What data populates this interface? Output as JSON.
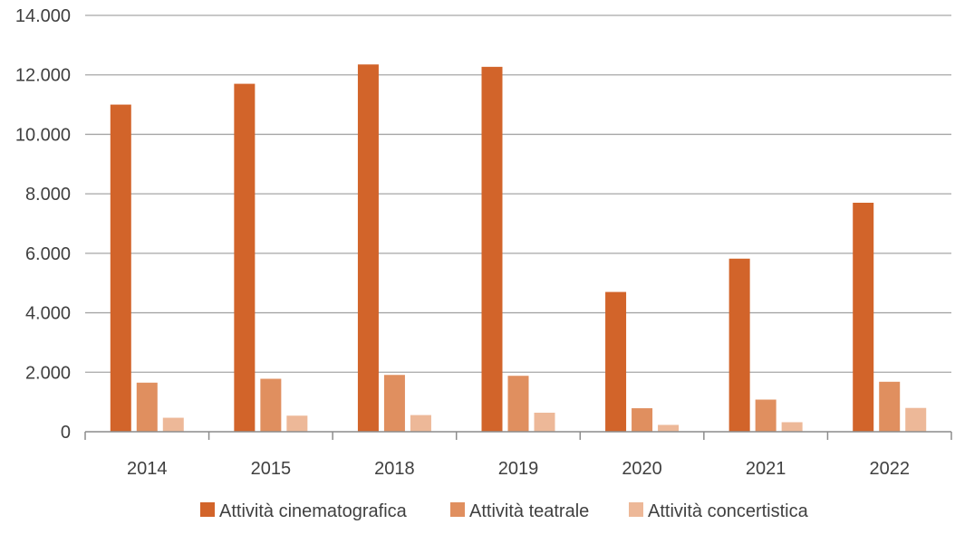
{
  "chart_data": {
    "type": "bar",
    "title": "",
    "xlabel": "",
    "ylabel": "",
    "categories": [
      "2014",
      "2015",
      "2018",
      "2019",
      "2020",
      "2021",
      "2022"
    ],
    "series": [
      {
        "name": "Attività cinematografica",
        "color": "#D2642A",
        "values": [
          11000,
          11700,
          12350,
          12270,
          4700,
          5820,
          7700
        ]
      },
      {
        "name": "Attività teatrale",
        "color": "#E08F5F",
        "values": [
          1650,
          1780,
          1910,
          1880,
          790,
          1080,
          1680
        ]
      },
      {
        "name": "Attività concertistica",
        "color": "#EDB898",
        "values": [
          470,
          540,
          560,
          640,
          230,
          320,
          800
        ]
      }
    ],
    "ylim": [
      0,
      14000
    ],
    "yticks": [
      0,
      2000,
      4000,
      6000,
      8000,
      10000,
      12000,
      14000
    ],
    "ytick_labels": [
      "0",
      "2.000",
      "4.000",
      "6.000",
      "8.000",
      "10.000",
      "12.000",
      "14.000"
    ],
    "grid": true,
    "legend_position": "bottom-center"
  }
}
